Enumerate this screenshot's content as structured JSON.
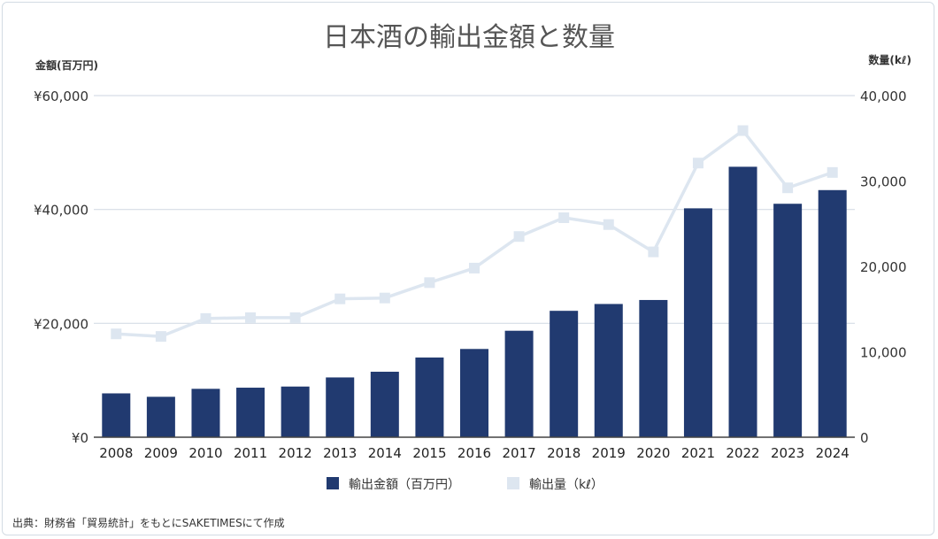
{
  "chart_data": {
    "type": "bar",
    "title": "日本酒の輸出金額と数量",
    "y_left_label": "金額(百万円)",
    "y_right_label": "数量(kℓ)",
    "categories": [
      "2008",
      "2009",
      "2010",
      "2011",
      "2012",
      "2013",
      "2014",
      "2015",
      "2016",
      "2017",
      "2018",
      "2019",
      "2020",
      "2021",
      "2022",
      "2023",
      "2024"
    ],
    "y_left_ticks": [
      "¥0",
      "¥20,000",
      "¥40,000",
      "¥60,000"
    ],
    "y_right_ticks": [
      "0",
      "10,000",
      "20,000",
      "30,000",
      "40,000"
    ],
    "ylim_left": [
      0,
      60000
    ],
    "ylim_right": [
      0,
      40000
    ],
    "grid": true,
    "legend_position": "bottom",
    "series": [
      {
        "name": "輸出金額（百万円）",
        "type": "bar",
        "axis": "left",
        "color": "#213a70",
        "values": [
          7700,
          7100,
          8500,
          8700,
          8900,
          10500,
          11500,
          14000,
          15500,
          18700,
          22200,
          23400,
          24100,
          40200,
          47500,
          41000,
          43400
        ]
      },
      {
        "name": "輸出量（kℓ）",
        "type": "line",
        "axis": "right",
        "color": "#dde6f0",
        "values": [
          12100,
          11800,
          13900,
          14000,
          14000,
          16200,
          16300,
          18100,
          19800,
          23500,
          25700,
          24900,
          21700,
          32100,
          35900,
          29200,
          31000
        ]
      }
    ]
  },
  "source_note": "出典：財務省「貿易統計」をもとにSAKETIMESにて作成"
}
